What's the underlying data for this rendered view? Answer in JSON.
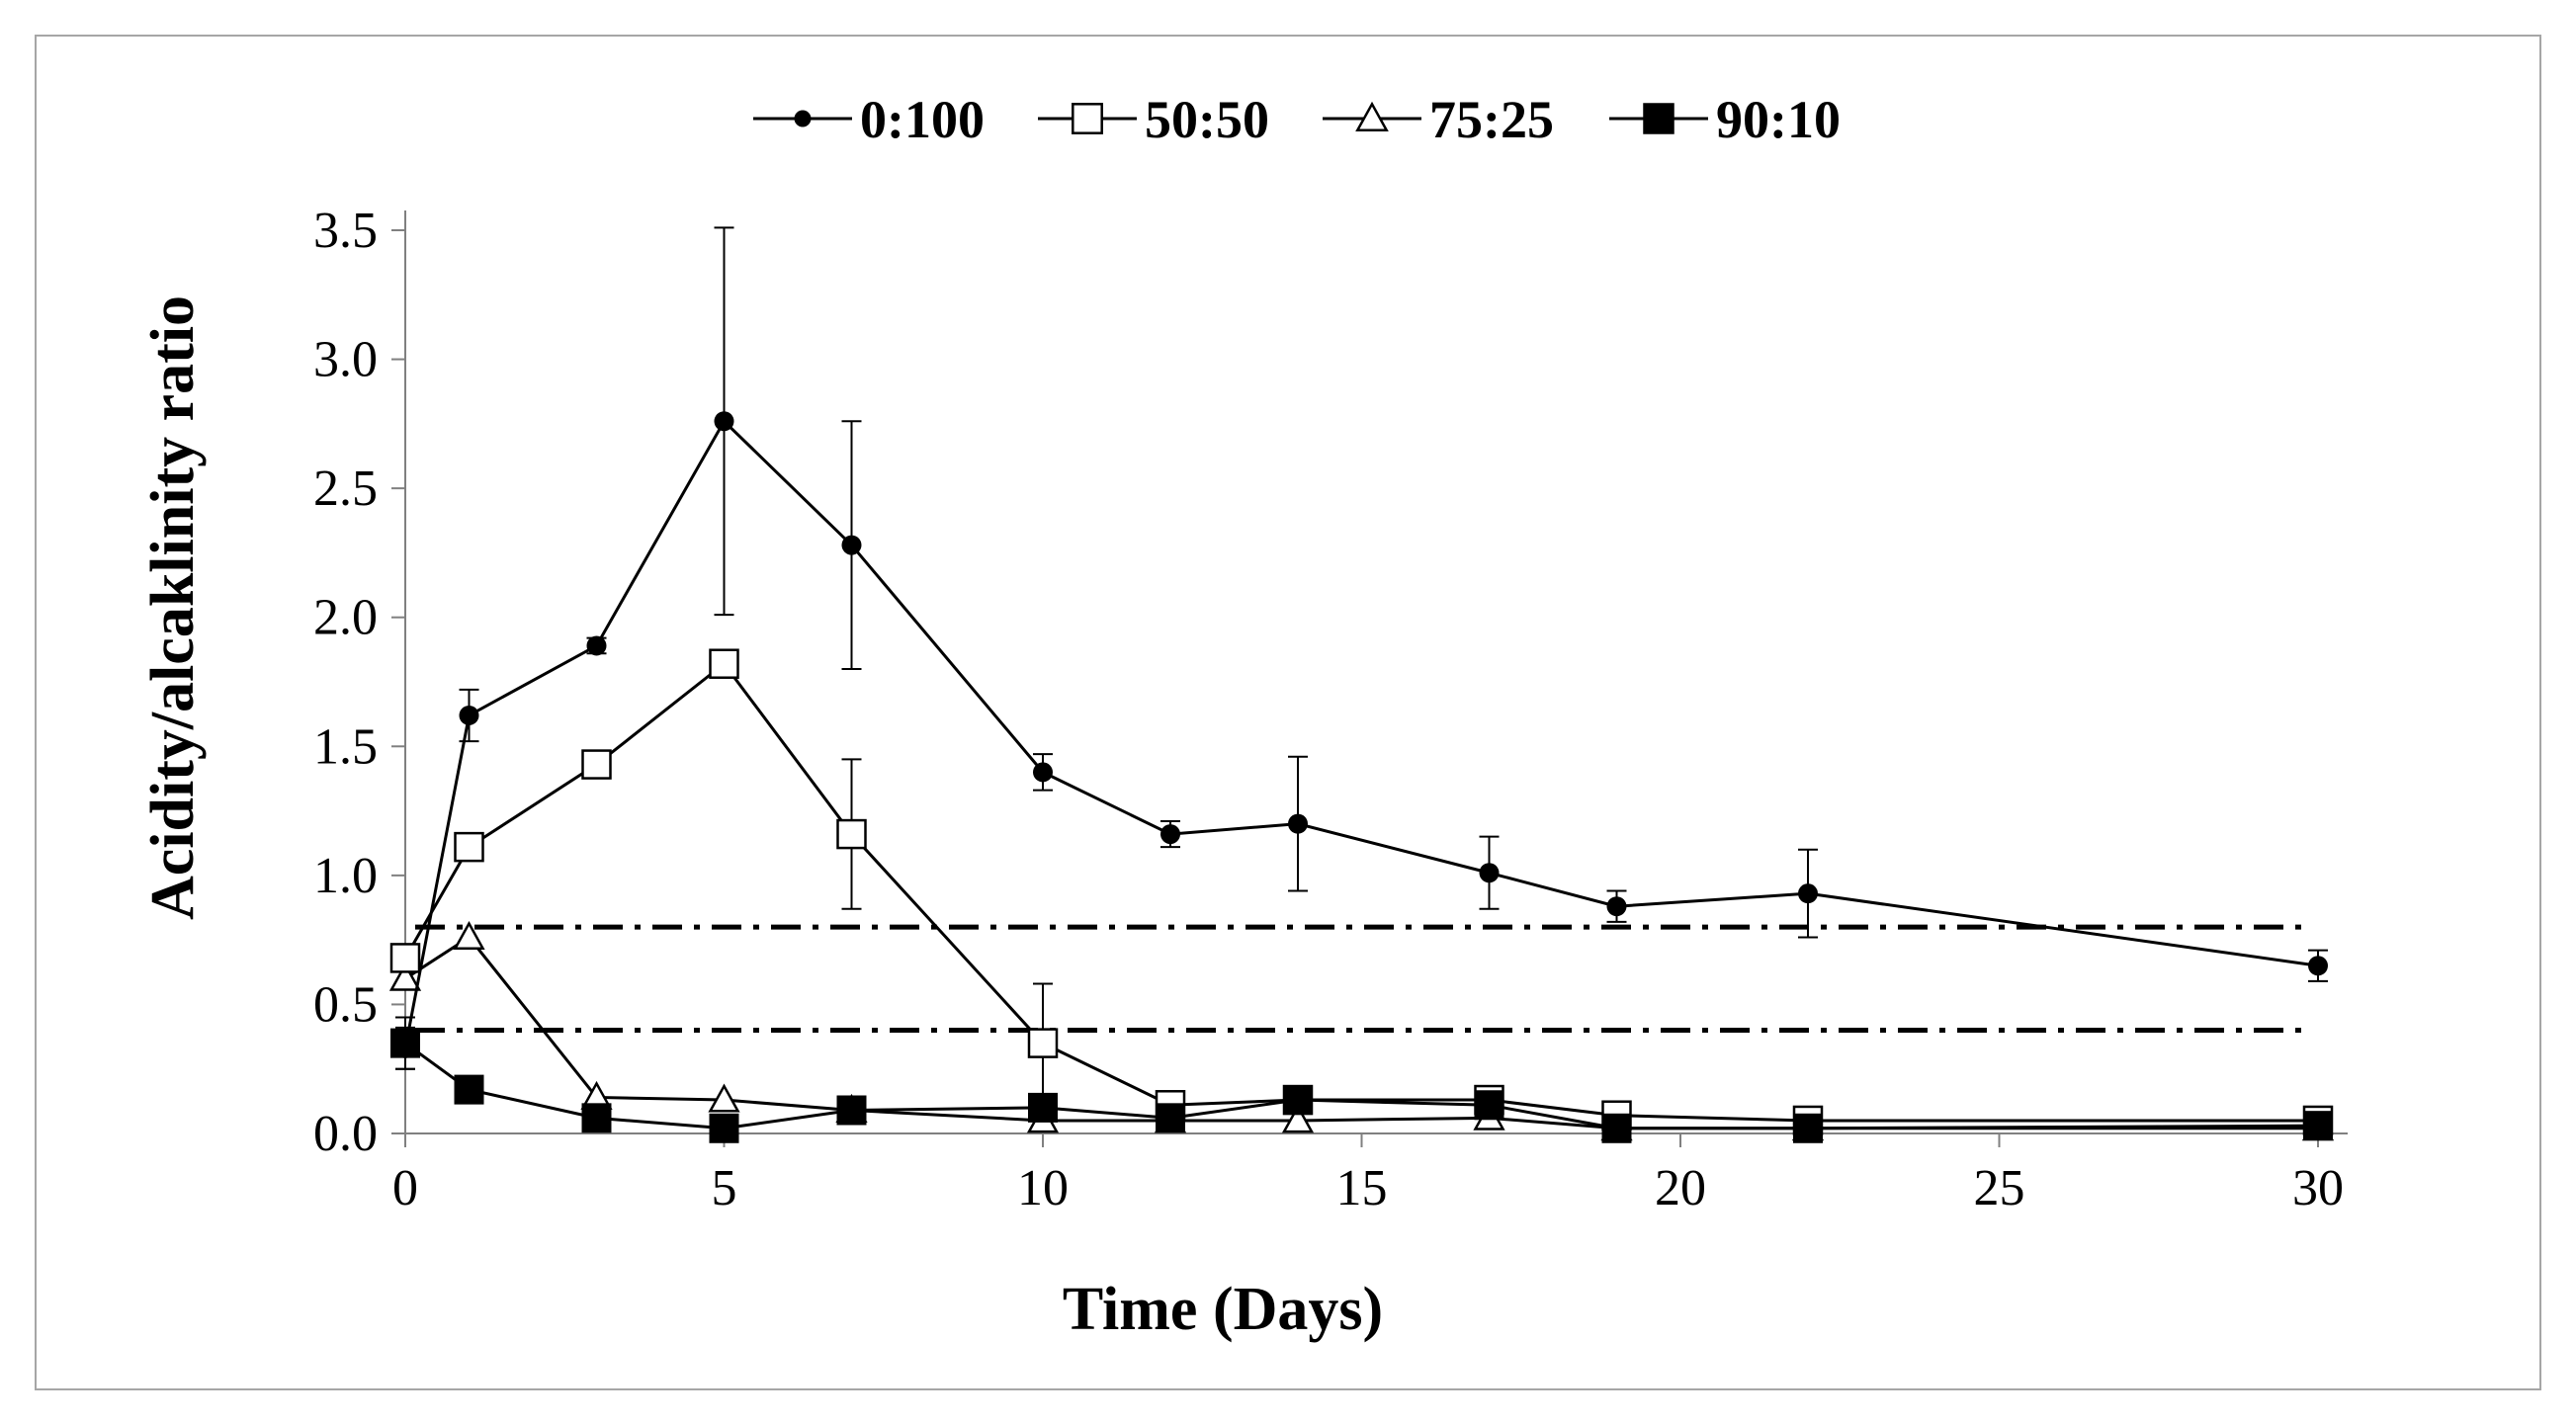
{
  "chart_data": {
    "type": "line",
    "title": "",
    "xlabel": "Time (Days)",
    "ylabel": "Acidity/alcaklinity ratio",
    "xlim": [
      0,
      30
    ],
    "ylim": [
      0,
      3.5
    ],
    "xticks": [
      0,
      5,
      10,
      15,
      20,
      25,
      30
    ],
    "xtick_labels": [
      "0",
      "5",
      "10",
      "15",
      "20",
      "25",
      "30"
    ],
    "yticks": [
      0,
      0.5,
      1,
      1.5,
      2,
      2.5,
      3,
      3.5
    ],
    "ytick_labels": [
      "0.0",
      "0.5",
      "1.0",
      "1.5",
      "2.0",
      "2.5",
      "3.0",
      "3.5"
    ],
    "grid": false,
    "legend_position": "top-center",
    "reference_lines": [
      {
        "y": 0.8,
        "style": "dash-dot"
      },
      {
        "y": 0.4,
        "style": "dash-dot"
      }
    ],
    "series": [
      {
        "name": "0:100",
        "marker": "filled-circle",
        "x": [
          0,
          1,
          3,
          5,
          7,
          10,
          12,
          14,
          17,
          19,
          22,
          30
        ],
        "y": [
          0.33,
          1.62,
          1.89,
          2.76,
          2.28,
          1.4,
          1.16,
          1.2,
          1.01,
          0.88,
          0.93,
          0.65
        ],
        "err": [
          0.08,
          0.1,
          0.03,
          0.75,
          0.48,
          0.07,
          0.05,
          0.26,
          0.14,
          0.06,
          0.17,
          0.06
        ]
      },
      {
        "name": "50:50",
        "marker": "open-square",
        "x": [
          0,
          1,
          3,
          5,
          7,
          10,
          12,
          14,
          17,
          19,
          22,
          30
        ],
        "y": [
          0.68,
          1.11,
          1.43,
          1.82,
          1.16,
          0.35,
          0.11,
          0.13,
          0.13,
          0.07,
          0.05,
          0.05
        ],
        "err": [
          0.0,
          0.0,
          0.0,
          0.0,
          0.29,
          0.23,
          0.0,
          0.0,
          0.0,
          0.0,
          0.0,
          0.0
        ]
      },
      {
        "name": "75:25",
        "marker": "open-triangle",
        "x": [
          0,
          1,
          3,
          5,
          7,
          10,
          12,
          14,
          17,
          19,
          22,
          30
        ],
        "y": [
          0.6,
          0.76,
          0.14,
          0.13,
          0.09,
          0.05,
          0.05,
          0.05,
          0.06,
          0.02,
          0.02,
          0.02
        ],
        "err": [
          0,
          0,
          0,
          0,
          0,
          0,
          0,
          0,
          0,
          0,
          0,
          0
        ]
      },
      {
        "name": "90:10",
        "marker": "filled-square",
        "x": [
          0,
          1,
          3,
          5,
          7,
          10,
          12,
          14,
          17,
          19,
          22,
          30
        ],
        "y": [
          0.35,
          0.17,
          0.06,
          0.02,
          0.09,
          0.1,
          0.06,
          0.13,
          0.11,
          0.02,
          0.02,
          0.03
        ],
        "err": [
          0.1,
          0,
          0,
          0,
          0,
          0,
          0,
          0,
          0,
          0,
          0,
          0
        ]
      }
    ]
  }
}
